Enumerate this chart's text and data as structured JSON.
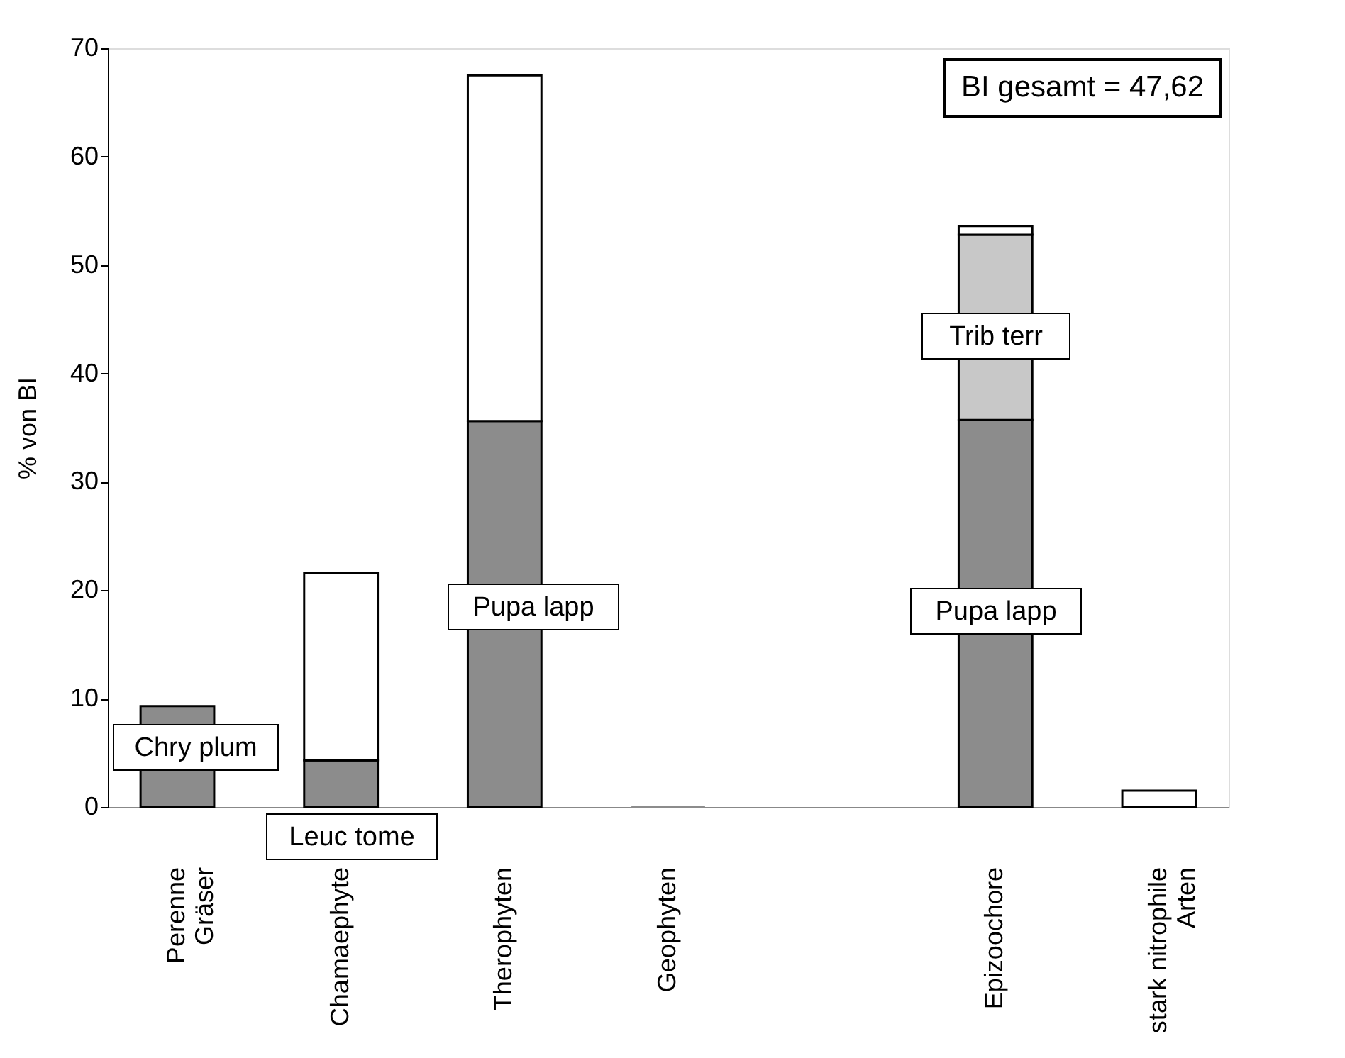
{
  "chart_data": {
    "type": "bar",
    "stacked": true,
    "ylabel": "% von BI",
    "categories": [
      "Perenne\nGräser",
      "Chamaephyte",
      "Therophyten",
      "Geophyten",
      null,
      "Epizoochore",
      "stark nitrophile\nArten"
    ],
    "series": [
      {
        "color": "#8c8c8c",
        "values": [
          9.3,
          4.3,
          35.6,
          0,
          null,
          35.7,
          null
        ]
      },
      {
        "color": "#ffffff",
        "values": [
          null,
          17.3,
          31.9,
          null,
          null,
          null,
          1.5
        ]
      },
      {
        "color": "#c8c8c8",
        "values": [
          null,
          null,
          null,
          null,
          null,
          17.1,
          null
        ]
      },
      {
        "color": "#ffffff",
        "values": [
          null,
          null,
          null,
          null,
          null,
          0.8,
          null
        ]
      }
    ],
    "ylim": [
      0,
      70
    ],
    "yticks": [
      0,
      10,
      20,
      30,
      40,
      50,
      60,
      70
    ],
    "grid": false,
    "annotations": [
      "BI gesamt = 47,62",
      "Chry plum",
      "Leuc tome",
      "Pupa lapp",
      "Trib terr",
      "Pupa lapp"
    ]
  }
}
